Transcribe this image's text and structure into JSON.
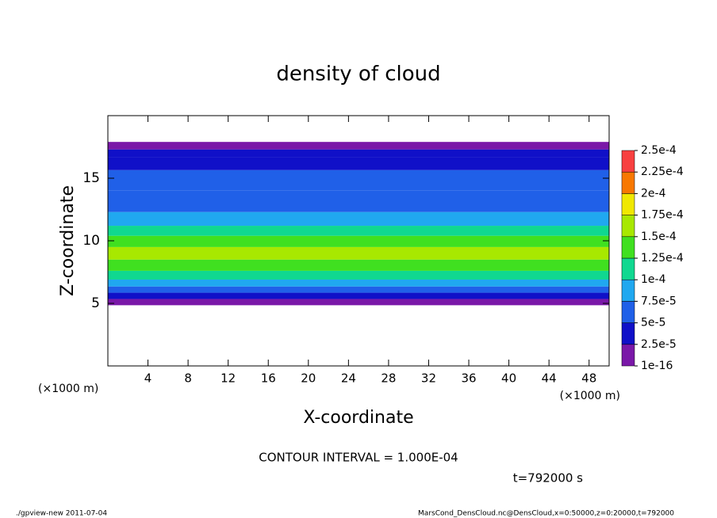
{
  "chart_data": {
    "type": "contour",
    "title": "density of cloud",
    "x_label": "X-coordinate",
    "y_label": "Z-coordinate",
    "x_unit": "(×1000 m)",
    "x_unit_right": "(×1000 m)",
    "xlim": [
      0,
      50
    ],
    "xticks": [
      4,
      8,
      12,
      16,
      20,
      24,
      28,
      32,
      36,
      40,
      44,
      48
    ],
    "ylim": [
      0,
      20
    ],
    "yticks": [
      5,
      10,
      15
    ],
    "levels": [
      {
        "value": 1e-16,
        "label": "1e-16"
      },
      {
        "value": 2.5e-05,
        "label": "2.5e-5"
      },
      {
        "value": 5e-05,
        "label": "5e-5"
      },
      {
        "value": 7.5e-05,
        "label": "7.5e-5"
      },
      {
        "value": 0.0001,
        "label": "1e-4"
      },
      {
        "value": 0.000125,
        "label": "1.25e-4"
      },
      {
        "value": 0.00015,
        "label": "1.5e-4"
      },
      {
        "value": 0.000175,
        "label": "1.75e-4"
      },
      {
        "value": 0.0002,
        "label": "2e-4"
      },
      {
        "value": 0.000225,
        "label": "2.25e-4"
      },
      {
        "value": 0.00025,
        "label": "2.5e-4"
      }
    ],
    "colors": [
      "#7a18a8",
      "#1010c8",
      "#2060e8",
      "#20a8f0",
      "#10d890",
      "#40e020",
      "#a8e800",
      "#f0e800",
      "#f87800",
      "#f84040"
    ],
    "profile": {
      "z": [
        5.1,
        5.6,
        6.1,
        6.6,
        7.2,
        8,
        9,
        10,
        10.8,
        11.6,
        13,
        15,
        16.3,
        17,
        17.6
      ],
      "density": [
        1e-05,
        3e-05,
        6e-05,
        8.5e-05,
        0.000105,
        0.00013,
        0.000155,
        0.00014,
        0.00011,
        8e-05,
        6.5e-05,
        5.5e-05,
        4e-05,
        3e-05,
        1.5e-05
      ]
    },
    "contour_note": "CONTOUR INTERVAL = 1.000E-04",
    "time_note": "t=792000 s",
    "footer_left": "./gpview-new  2011-07-04",
    "footer_right": "MarsCond_DensCloud.nc@DensCloud,x=0:50000,z=0:20000,t=792000"
  }
}
